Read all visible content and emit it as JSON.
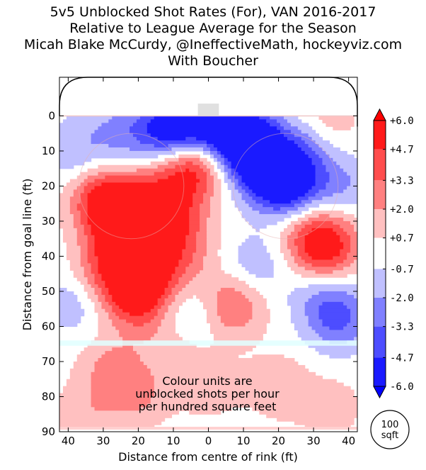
{
  "title_lines": [
    "5v5 Unblocked Shot Rates (For), VAN 2016-2017",
    "Relative to League Average for the Season",
    "Micah Blake McCurdy, @IneffectiveMath, hockeyviz.com",
    "With Boucher"
  ],
  "annotation": {
    "line1": "Colour units are",
    "line2": "unblocked shots per hour",
    "line3": "per hundred square feet"
  },
  "area_marker": {
    "line1": "100",
    "line2": "sqft"
  },
  "colors": {
    "strong_red": "#ff0000",
    "strong_blue": "#0000ff",
    "neutral": "#ffffff",
    "neutral_zone_band": "#e0ffff"
  },
  "chart_data": {
    "type": "heatmap",
    "xlabel": "Distance from centre of rink (ft)",
    "ylabel": "Distance from goal line (ft)",
    "xlim": [
      -42.5,
      42.5
    ],
    "ylim": [
      -11,
      90
    ],
    "y_inverted": true,
    "x_ticks": [
      {
        "value": -40,
        "label": "40"
      },
      {
        "value": -30,
        "label": "30"
      },
      {
        "value": -20,
        "label": "20"
      },
      {
        "value": -10,
        "label": "10"
      },
      {
        "value": 0,
        "label": "0"
      },
      {
        "value": 10,
        "label": "10"
      },
      {
        "value": 20,
        "label": "20"
      },
      {
        "value": 30,
        "label": "30"
      },
      {
        "value": 40,
        "label": "40"
      }
    ],
    "y_ticks": [
      {
        "value": 0,
        "label": "0"
      },
      {
        "value": 10,
        "label": "10"
      },
      {
        "value": 20,
        "label": "20"
      },
      {
        "value": 30,
        "label": "30"
      },
      {
        "value": 40,
        "label": "40"
      },
      {
        "value": 50,
        "label": "50"
      },
      {
        "value": 60,
        "label": "60"
      },
      {
        "value": 70,
        "label": "70"
      },
      {
        "value": 80,
        "label": "80"
      },
      {
        "value": 90,
        "label": "90"
      }
    ],
    "colorbar": {
      "min": -6.0,
      "max": 6.0,
      "extend": "both",
      "levels": [
        {
          "label": "+6.0",
          "value": 6.0
        },
        {
          "label": "+4.7",
          "value": 4.7
        },
        {
          "label": "+3.3",
          "value": 3.3
        },
        {
          "label": "+2.0",
          "value": 2.0
        },
        {
          "label": "+0.7",
          "value": 0.7
        },
        {
          "label": "-0.7",
          "value": -0.7
        },
        {
          "label": "-2.0",
          "value": -2.0
        },
        {
          "label": "-3.3",
          "value": -3.3
        },
        {
          "label": "-4.7",
          "value": -4.7
        },
        {
          "label": "-6.0",
          "value": -6.0
        }
      ],
      "band_colors": [
        "#ff1a1a",
        "#ff4d4d",
        "#ff8080",
        "#ffc0c0",
        "#ffffff",
        "#c0c0ff",
        "#8080ff",
        "#4d4dff",
        "#1a1aff"
      ]
    },
    "blobs": [
      {
        "x": -30,
        "y": 24,
        "v": 5.4
      },
      {
        "x": -23,
        "y": 30,
        "v": 3.6
      },
      {
        "x": -10,
        "y": 30,
        "v": 4.2
      },
      {
        "x": -5,
        "y": 15,
        "v": 5.6
      },
      {
        "x": -17,
        "y": 23,
        "v": 3.2
      },
      {
        "x": -25,
        "y": 36,
        "v": 3.2
      },
      {
        "x": -21,
        "y": 48,
        "v": 5.0
      },
      {
        "x": -14,
        "y": 43,
        "v": 3.0
      },
      {
        "x": -30,
        "y": 44,
        "v": 2.6
      },
      {
        "x": -20,
        "y": 55,
        "v": 2.4
      },
      {
        "x": -5,
        "y": 40,
        "v": 1.4
      },
      {
        "x": 7,
        "y": 54,
        "v": 3.6
      },
      {
        "x": 33,
        "y": 39,
        "v": 4.4
      },
      {
        "x": 28,
        "y": 32,
        "v": 2.4
      },
      {
        "x": 36,
        "y": 34,
        "v": 1.6
      },
      {
        "x": 34,
        "y": 2,
        "v": 1.6
      },
      {
        "x": -28,
        "y": 72,
        "v": 2.2
      },
      {
        "x": -20,
        "y": 80,
        "v": 2.0
      },
      {
        "x": -35,
        "y": 85,
        "v": 1.5
      },
      {
        "x": 0,
        "y": 77,
        "v": 1.5
      },
      {
        "x": 20,
        "y": 77,
        "v": 1.8
      },
      {
        "x": 35,
        "y": 83,
        "v": 1.4
      },
      {
        "x": -10,
        "y": 66,
        "v": 1.4
      },
      {
        "x": -11,
        "y": 4,
        "v": -6.0
      },
      {
        "x": 0,
        "y": 2,
        "v": -5.0
      },
      {
        "x": 10,
        "y": 6,
        "v": -6.0
      },
      {
        "x": 14,
        "y": 12,
        "v": -4.6
      },
      {
        "x": 20,
        "y": 18,
        "v": -4.8
      },
      {
        "x": 24,
        "y": 22,
        "v": -2.8
      },
      {
        "x": -25,
        "y": 5,
        "v": -2.2
      },
      {
        "x": -38,
        "y": 10,
        "v": -1.8
      },
      {
        "x": 27,
        "y": 10,
        "v": -2.6
      },
      {
        "x": 37,
        "y": 20,
        "v": -2.2
      },
      {
        "x": 37,
        "y": 58,
        "v": -3.4
      },
      {
        "x": 32,
        "y": 50,
        "v": -1.8
      },
      {
        "x": -38,
        "y": 53,
        "v": -1.6
      },
      {
        "x": 13,
        "y": 43,
        "v": -1.8
      },
      {
        "x": -5,
        "y": 57,
        "v": -1.6
      }
    ],
    "rink": {
      "goal_line_y": 0,
      "neutral_zone_band_y": [
        64,
        65.5
      ],
      "bottom_line_y": 89,
      "goal_crease_x": [
        -3,
        3
      ],
      "faceoff_circles": [
        {
          "x": -22,
          "y": 20,
          "r": 15
        },
        {
          "x": 22,
          "y": 20,
          "r": 15
        }
      ]
    }
  }
}
